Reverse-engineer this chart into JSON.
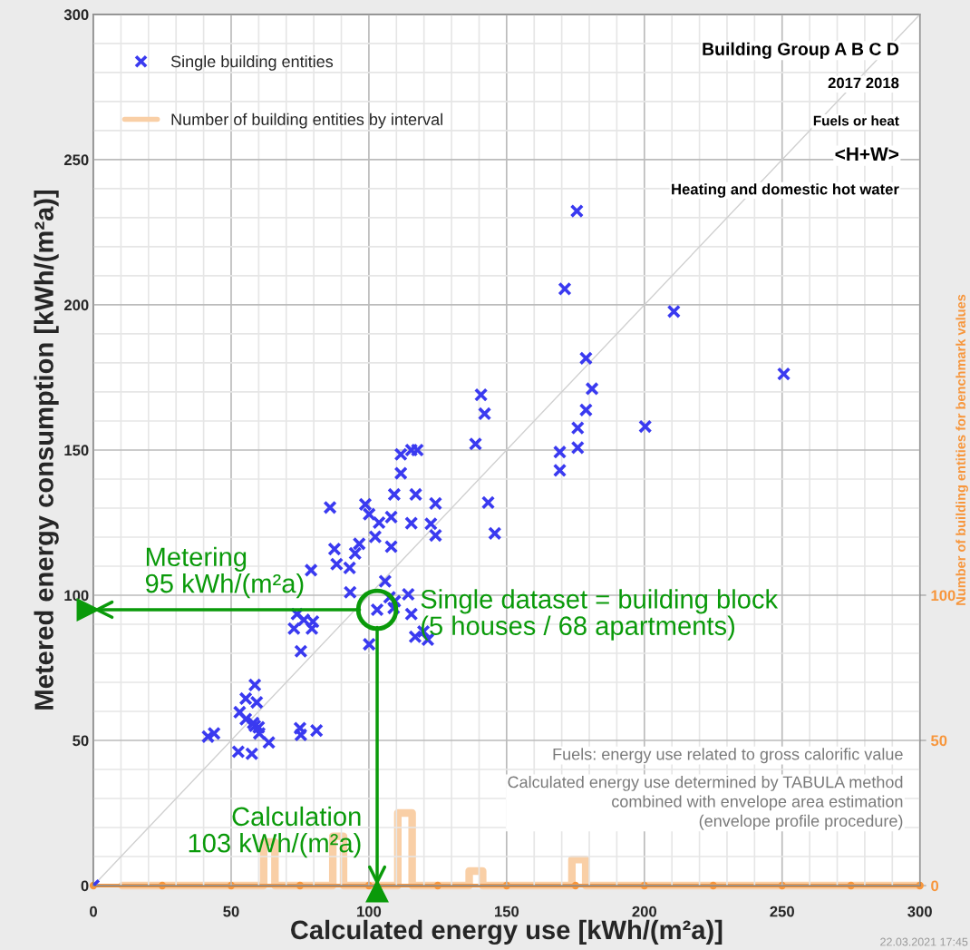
{
  "chart_data": {
    "type": "scatter",
    "xlabel": "Calculated energy use [kWh/(m²a)]",
    "ylabel": "Metered energy consumption [kWh/(m²a)]",
    "y2label": "Number of building entities for benchmark values",
    "xlim": [
      0,
      300
    ],
    "ylim": [
      0,
      300
    ],
    "y2lim": [
      0,
      300
    ],
    "xticks": [
      0,
      {
        "value": 10,
        "label": null
      },
      {
        "value": 20,
        "label": null
      },
      {
        "value": 30,
        "label": null
      },
      {
        "value": 40,
        "label": null
      },
      50,
      {
        "value": 60,
        "label": null
      },
      {
        "value": 70,
        "label": null
      },
      {
        "value": 80,
        "label": null
      },
      {
        "value": 90,
        "label": null
      },
      100,
      {
        "value": 110,
        "label": null
      },
      {
        "value": 120,
        "label": null
      },
      {
        "value": 130,
        "label": null
      },
      {
        "value": 140,
        "label": null
      },
      150,
      {
        "value": 160,
        "label": null
      },
      {
        "value": 170,
        "label": null
      },
      {
        "value": 180,
        "label": null
      },
      {
        "value": 190,
        "label": null
      },
      200,
      {
        "value": 210,
        "label": null
      },
      {
        "value": 220,
        "label": null
      },
      {
        "value": 230,
        "label": null
      },
      {
        "value": 240,
        "label": null
      },
      250,
      {
        "value": 260,
        "label": null
      },
      {
        "value": 270,
        "label": null
      },
      {
        "value": 280,
        "label": null
      },
      {
        "value": 290,
        "label": null
      },
      300
    ],
    "yticks": [
      0,
      {
        "value": 10,
        "label": null
      },
      {
        "value": 20,
        "label": null
      },
      {
        "value": 30,
        "label": null
      },
      {
        "value": 40,
        "label": null
      },
      50,
      {
        "value": 60,
        "label": null
      },
      {
        "value": 70,
        "label": null
      },
      {
        "value": 80,
        "label": null
      },
      {
        "value": 90,
        "label": null
      },
      100,
      {
        "value": 110,
        "label": null
      },
      {
        "value": 120,
        "label": null
      },
      {
        "value": 130,
        "label": null
      },
      {
        "value": 140,
        "label": null
      },
      150,
      {
        "value": 160,
        "label": null
      },
      {
        "value": 170,
        "label": null
      },
      {
        "value": 180,
        "label": null
      },
      {
        "value": 190,
        "label": null
      },
      200,
      {
        "value": 210,
        "label": null
      },
      {
        "value": 220,
        "label": null
      },
      {
        "value": 230,
        "label": null
      },
      {
        "value": 240,
        "label": null
      },
      250,
      {
        "value": 260,
        "label": null
      },
      {
        "value": 270,
        "label": null
      },
      {
        "value": 280,
        "label": null
      },
      {
        "value": 290,
        "label": null
      },
      300
    ],
    "y2ticks": [
      0,
      50,
      100
    ],
    "grid": true,
    "legend": "top left",
    "marker": "cross",
    "series": [
      {
        "name": "Single building entities",
        "color": "#3a3af0",
        "x": [
          0,
          138.7,
          111.6,
          115.4,
          117.6,
          111.6,
          109.2,
          117,
          124.2,
          143.3,
          85.9,
          98.7,
          100.1,
          103.7,
          108.1,
          115.4,
          122.5,
          124.2,
          145.7,
          102.3,
          108.1,
          87.5,
          96.5,
          95,
          88.3,
          93,
          79,
          93.2,
          105.9,
          107.5,
          109.4,
          114.3,
          103,
          109,
          115.4,
          116.8,
          121.4,
          119.8,
          100.1,
          73.9,
          76.4,
          72.8,
          79.3,
          79.7,
          75.3,
          58.6,
          55.3,
          59.3,
          53.1,
          55.3,
          58,
          58.6,
          60,
          60.2,
          63.7,
          41.6,
          43.8,
          52.6,
          57.5,
          75,
          75.3,
          81,
          140.7,
          142,
          175.5,
          171.1,
          210.7,
          178.8,
          181,
          178.8,
          175.8,
          200.3,
          175.8,
          169.3,
          169.3,
          250.6
        ],
        "values": [
          0,
          152.1,
          148.5,
          150,
          150,
          142,
          134.7,
          134.7,
          131.6,
          131.9,
          130.2,
          131.3,
          127.9,
          125,
          126.9,
          124.8,
          124.6,
          120.6,
          121.3,
          120.1,
          116.7,
          115.9,
          117.7,
          114.4,
          110.7,
          109.4,
          108.6,
          101,
          104.8,
          99.3,
          97.9,
          100.3,
          95,
          95.6,
          93.5,
          85.7,
          84.7,
          87.5,
          83.1,
          93.5,
          91.5,
          88.5,
          88.5,
          90.9,
          80.7,
          69.1,
          64.4,
          63.1,
          59.7,
          57.3,
          56,
          55,
          54.5,
          52.4,
          49.3,
          51.3,
          52.4,
          46.1,
          45.4,
          54.2,
          51.9,
          53.4,
          169,
          162.5,
          232.3,
          205.5,
          197.7,
          181.6,
          171.1,
          163.8,
          157.6,
          158.1,
          150.8,
          149.3,
          143,
          176.2
        ]
      },
      {
        "name": "Number of building entities by interval",
        "type": "step",
        "axis": "y2",
        "color": "#f9cfa6",
        "marker": "none",
        "x": [
          10.4,
          61.8,
          65.9,
          86.9,
          90.8,
          110.5,
          115.7,
          136.4,
          141.3,
          173.7,
          178.7,
          300
        ],
        "values": [
          0,
          15,
          0,
          17,
          0,
          25,
          0,
          5,
          0,
          9,
          0,
          0
        ]
      },
      {
        "type": "line",
        "axis": "y2",
        "color": "#f7963c",
        "marker": "circle",
        "x": [
          0,
          25,
          50,
          75,
          100,
          125,
          150,
          175,
          200,
          225,
          250,
          275,
          300
        ],
        "values": [
          0,
          0,
          0,
          0,
          0,
          0,
          0,
          0,
          0,
          0,
          0,
          0,
          0
        ]
      },
      {
        "type": "line",
        "color": "#d0d0d0",
        "marker": "none",
        "x": [
          0,
          300
        ],
        "values": [
          0,
          300
        ]
      }
    ],
    "annotations": [
      "Metering\n95 kWh/(m²a)",
      "Calculation\n103 kWh/(m²a)",
      {
        "text": "Single dataset = building block\n(5 houses / 68 apartments)",
        "x": 103,
        "y": 95
      },
      "Building Group A B C D",
      "2017 2018",
      "Fuels or heat",
      "<H+W>",
      "Heating and domestic hot water",
      "Fuels: energy use related to gross calorific value",
      "Calculated energy use determined by TABULA method\ncombined with envelope area estimation\n(envelope profile procedure)",
      "22.03.2021 17:45"
    ]
  }
}
